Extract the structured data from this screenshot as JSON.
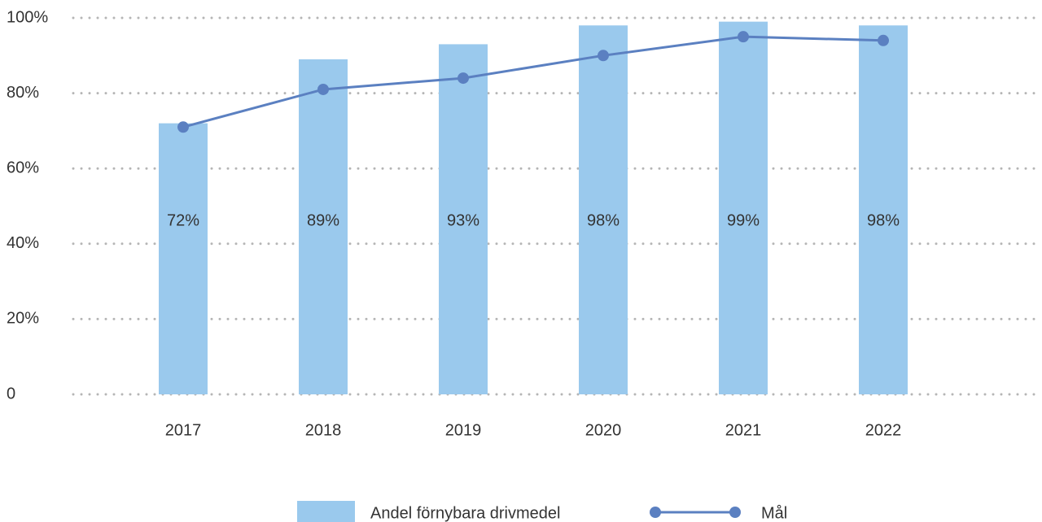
{
  "chart_data": {
    "type": "bar_line",
    "categories": [
      "2017",
      "2018",
      "2019",
      "2020",
      "2021",
      "2022"
    ],
    "series": [
      {
        "name": "Andel förnybara drivmedel",
        "type": "bar",
        "color": "#9ac9ed",
        "values": [
          72,
          89,
          93,
          98,
          99,
          98
        ],
        "value_labels": [
          "72%",
          "89%",
          "93%",
          "98%",
          "99%",
          "98%"
        ]
      },
      {
        "name": "Mål",
        "type": "line",
        "color": "#5b80c1",
        "values": [
          71,
          81,
          84,
          90,
          95,
          94
        ]
      }
    ],
    "ylim": [
      0,
      100
    ],
    "yticks": [
      0,
      {
        "value": 20,
        "label": "20%"
      },
      {
        "value": 40,
        "label": "40%"
      },
      {
        "value": 60,
        "label": "60%"
      },
      {
        "value": 80,
        "label": "80%"
      },
      {
        "value": 100,
        "label": "100%"
      }
    ],
    "grid": true,
    "legend": "bottom"
  }
}
